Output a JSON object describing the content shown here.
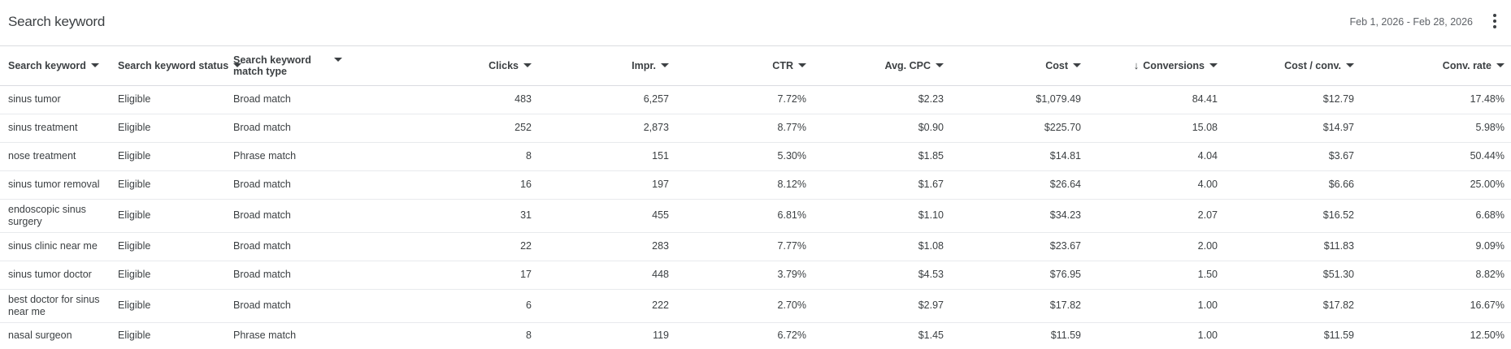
{
  "card": {
    "title": "Search keyword",
    "date_range": "Feb 1, 2026 - Feb 28, 2026"
  },
  "columns": [
    {
      "label": "Search keyword",
      "align": "left"
    },
    {
      "label": "Search keyword status",
      "align": "left"
    },
    {
      "label": "Search keyword match type",
      "align": "left"
    },
    {
      "label": "Clicks",
      "align": "right"
    },
    {
      "label": "Impr.",
      "align": "right"
    },
    {
      "label": "CTR",
      "align": "right"
    },
    {
      "label": "Avg. CPC",
      "align": "right"
    },
    {
      "label": "Cost",
      "align": "right"
    },
    {
      "label": "Conversions",
      "align": "right",
      "sorted": "descending"
    },
    {
      "label": "Cost / conv.",
      "align": "right"
    },
    {
      "label": "Conv. rate",
      "align": "right"
    }
  ],
  "rows": [
    {
      "keyword": "sinus tumor",
      "status": "Eligible",
      "match_type": "Broad match",
      "clicks": "483",
      "impr": "6,257",
      "ctr": "7.72%",
      "avg_cpc": "$2.23",
      "cost": "$1,079.49",
      "conversions": "84.41",
      "cost_per_conv": "$12.79",
      "conv_rate": "17.48%"
    },
    {
      "keyword": "sinus treatment",
      "status": "Eligible",
      "match_type": "Broad match",
      "clicks": "252",
      "impr": "2,873",
      "ctr": "8.77%",
      "avg_cpc": "$0.90",
      "cost": "$225.70",
      "conversions": "15.08",
      "cost_per_conv": "$14.97",
      "conv_rate": "5.98%"
    },
    {
      "keyword": "nose treatment",
      "status": "Eligible",
      "match_type": "Phrase match",
      "clicks": "8",
      "impr": "151",
      "ctr": "5.30%",
      "avg_cpc": "$1.85",
      "cost": "$14.81",
      "conversions": "4.04",
      "cost_per_conv": "$3.67",
      "conv_rate": "50.44%"
    },
    {
      "keyword": "sinus tumor removal",
      "status": "Eligible",
      "match_type": "Broad match",
      "clicks": "16",
      "impr": "197",
      "ctr": "8.12%",
      "avg_cpc": "$1.67",
      "cost": "$26.64",
      "conversions": "4.00",
      "cost_per_conv": "$6.66",
      "conv_rate": "25.00%"
    },
    {
      "keyword": "endoscopic sinus surgery",
      "status": "Eligible",
      "match_type": "Broad match",
      "clicks": "31",
      "impr": "455",
      "ctr": "6.81%",
      "avg_cpc": "$1.10",
      "cost": "$34.23",
      "conversions": "2.07",
      "cost_per_conv": "$16.52",
      "conv_rate": "6.68%"
    },
    {
      "keyword": "sinus clinic near me",
      "status": "Eligible",
      "match_type": "Broad match",
      "clicks": "22",
      "impr": "283",
      "ctr": "7.77%",
      "avg_cpc": "$1.08",
      "cost": "$23.67",
      "conversions": "2.00",
      "cost_per_conv": "$11.83",
      "conv_rate": "9.09%"
    },
    {
      "keyword": "sinus tumor doctor",
      "status": "Eligible",
      "match_type": "Broad match",
      "clicks": "17",
      "impr": "448",
      "ctr": "3.79%",
      "avg_cpc": "$4.53",
      "cost": "$76.95",
      "conversions": "1.50",
      "cost_per_conv": "$51.30",
      "conv_rate": "8.82%"
    },
    {
      "keyword": "best doctor for sinus near me",
      "status": "Eligible",
      "match_type": "Broad match",
      "clicks": "6",
      "impr": "222",
      "ctr": "2.70%",
      "avg_cpc": "$2.97",
      "cost": "$17.82",
      "conversions": "1.00",
      "cost_per_conv": "$17.82",
      "conv_rate": "16.67%"
    },
    {
      "keyword": "nasal surgeon",
      "status": "Eligible",
      "match_type": "Phrase match",
      "clicks": "8",
      "impr": "119",
      "ctr": "6.72%",
      "avg_cpc": "$1.45",
      "cost": "$11.59",
      "conversions": "1.00",
      "cost_per_conv": "$11.59",
      "conv_rate": "12.50%"
    }
  ]
}
